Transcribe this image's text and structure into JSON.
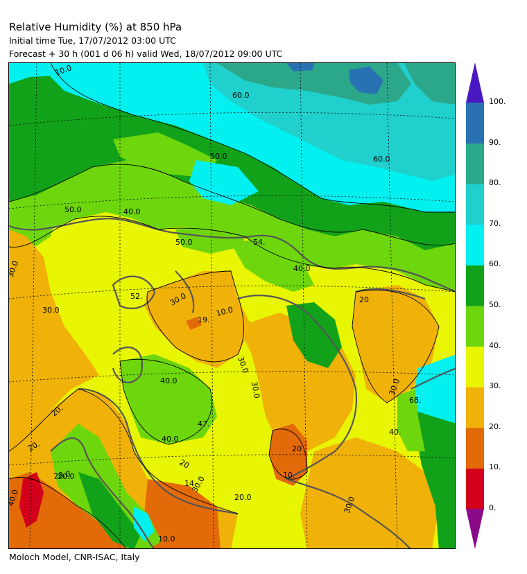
{
  "header": {
    "title": "Relative Humidity (%) at 850 hPa",
    "initial_time": "Initial time  Tue, 17/07/2012  03:00 UTC",
    "forecast": "Forecast  +  30 h  (001 d 06 h)  valid Wed, 18/07/2012 09:00 UTC"
  },
  "footer": "Moloch Model, CNR-ISAC, Italy",
  "legend": {
    "levels": [
      "0.",
      "10.",
      "20.",
      "30.",
      "40.",
      "50.",
      "60.",
      "70.",
      "80.",
      "90.",
      "100."
    ],
    "bins": [
      {
        "from": 0,
        "to": 10,
        "color": "#d2001a"
      },
      {
        "from": 10,
        "to": 20,
        "color": "#e26a09"
      },
      {
        "from": 20,
        "to": 30,
        "color": "#f0b208"
      },
      {
        "from": 30,
        "to": 40,
        "color": "#e8f503"
      },
      {
        "from": 40,
        "to": 50,
        "color": "#6ed60c"
      },
      {
        "from": 50,
        "to": 60,
        "color": "#12a21a"
      },
      {
        "from": 60,
        "to": 70,
        "color": "#03f0f0"
      },
      {
        "from": 70,
        "to": 80,
        "color": "#20d0cc"
      },
      {
        "from": 80,
        "to": 90,
        "color": "#2ba78a"
      },
      {
        "from": 90,
        "to": 100,
        "color": "#2872b4"
      }
    ],
    "under_color": "#8a0a8a",
    "over_color": "#4a18c0"
  },
  "contour_labels": [
    "10.0",
    "50.0",
    "60.0",
    "50.0",
    "60.0",
    "40.0",
    "50.0",
    "54.",
    "40.0",
    "30.0",
    "30.0",
    "52.",
    "30.0",
    "19.",
    "10.0",
    "30.0",
    "20",
    "40.0",
    "47.",
    "40.0",
    "20.",
    "20.0",
    "14.",
    "30.0",
    "20",
    "30.0",
    "68.",
    "40.",
    "10.",
    "30.0",
    "20",
    "40.0",
    "20.0",
    "10.0",
    "20.",
    "20.0",
    "30.0"
  ]
}
